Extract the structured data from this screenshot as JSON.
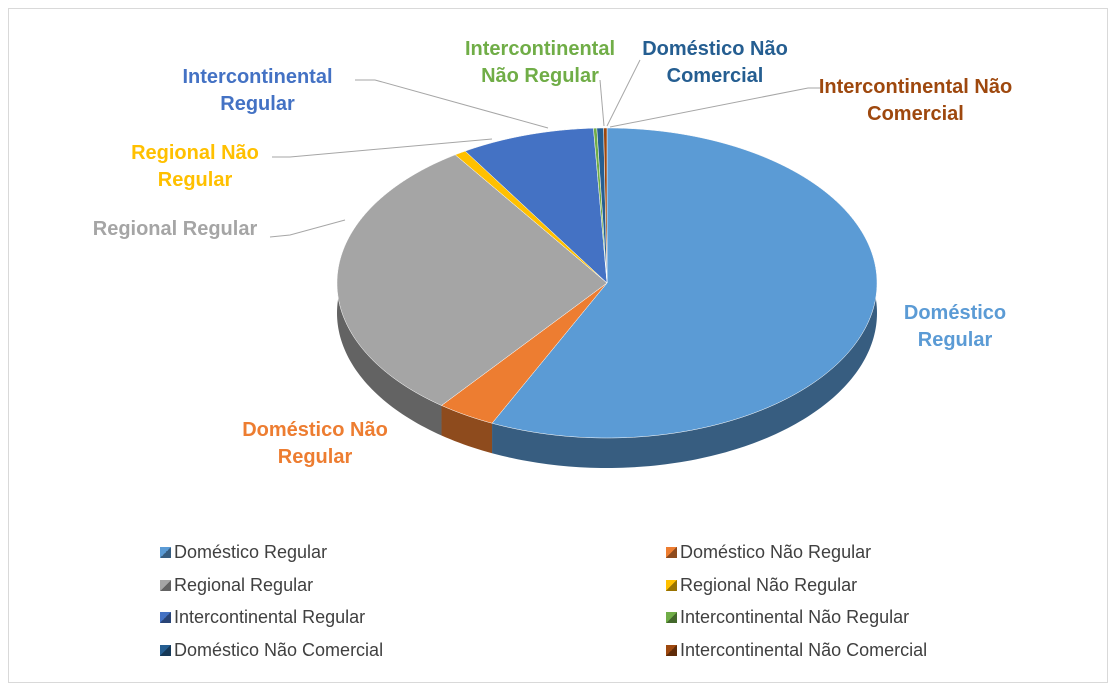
{
  "chart_data": {
    "type": "pie",
    "categories": [
      "Doméstico Regular",
      "Doméstico Não Regular",
      "Regional Regular",
      "Regional Não Regular",
      "Intercontinental Regular",
      "Intercontinental Não Regular",
      "Doméstico Não Comercial",
      "Intercontinental Não Comercial"
    ],
    "values": [
      57,
      3.5,
      30,
      0.7,
      8,
      0.2,
      0.4,
      0.2
    ],
    "colors": [
      "#5b9bd5",
      "#ed7d31",
      "#a5a5a5",
      "#ffc000",
      "#4472c4",
      "#70ad47",
      "#255e91",
      "#9e480e"
    ],
    "legend": "bottom"
  }
}
